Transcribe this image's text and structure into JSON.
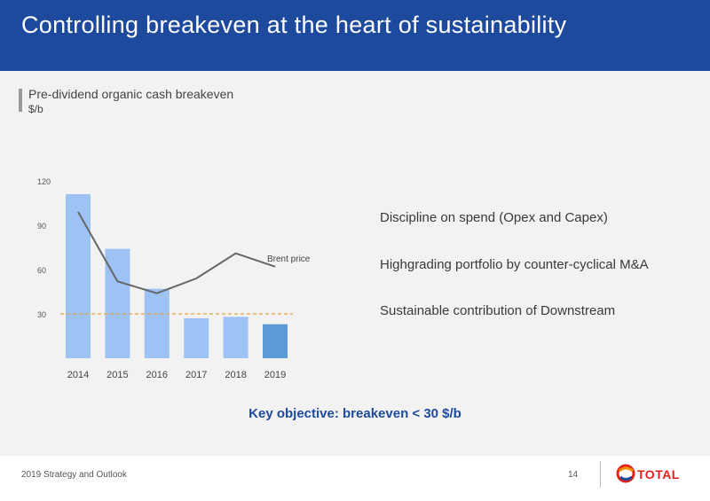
{
  "header": {
    "title": "Controlling breakeven at the heart of sustainability"
  },
  "chart_data": {
    "type": "bar",
    "title": "Pre-dividend organic cash breakeven",
    "unit": "$/b",
    "categories": [
      "2014",
      "2015",
      "2016",
      "2017",
      "2018",
      "2019"
    ],
    "series": [
      {
        "values": [
          111,
          74,
          47,
          27,
          28,
          23
        ]
      },
      {
        "name": "Brent price",
        "type": "line",
        "values": [
          99,
          52,
          44,
          54,
          71,
          62
        ]
      }
    ],
    "reference_line": {
      "value": 30,
      "style": "dashed"
    },
    "y_ticks": [
      "30",
      "60",
      "90",
      "120"
    ],
    "ylim": [
      0,
      120
    ],
    "colors": {
      "bar": "#9dc3f5",
      "bar_highlight": "#5b9bd5",
      "line": "#666666",
      "reference": "#e8a33b"
    },
    "highlight_index": 5,
    "grid": false
  },
  "bullets": [
    "Discipline on spend (Opex and Capex)",
    "Highgrading portfolio by counter-cyclical M&A",
    "Sustainable contribution of Downstream"
  ],
  "key_objective": "Key objective: breakeven < 30 $/b",
  "footer": {
    "text": "2019 Strategy and Outlook",
    "page": "14",
    "logo_text": "TOTAL"
  }
}
